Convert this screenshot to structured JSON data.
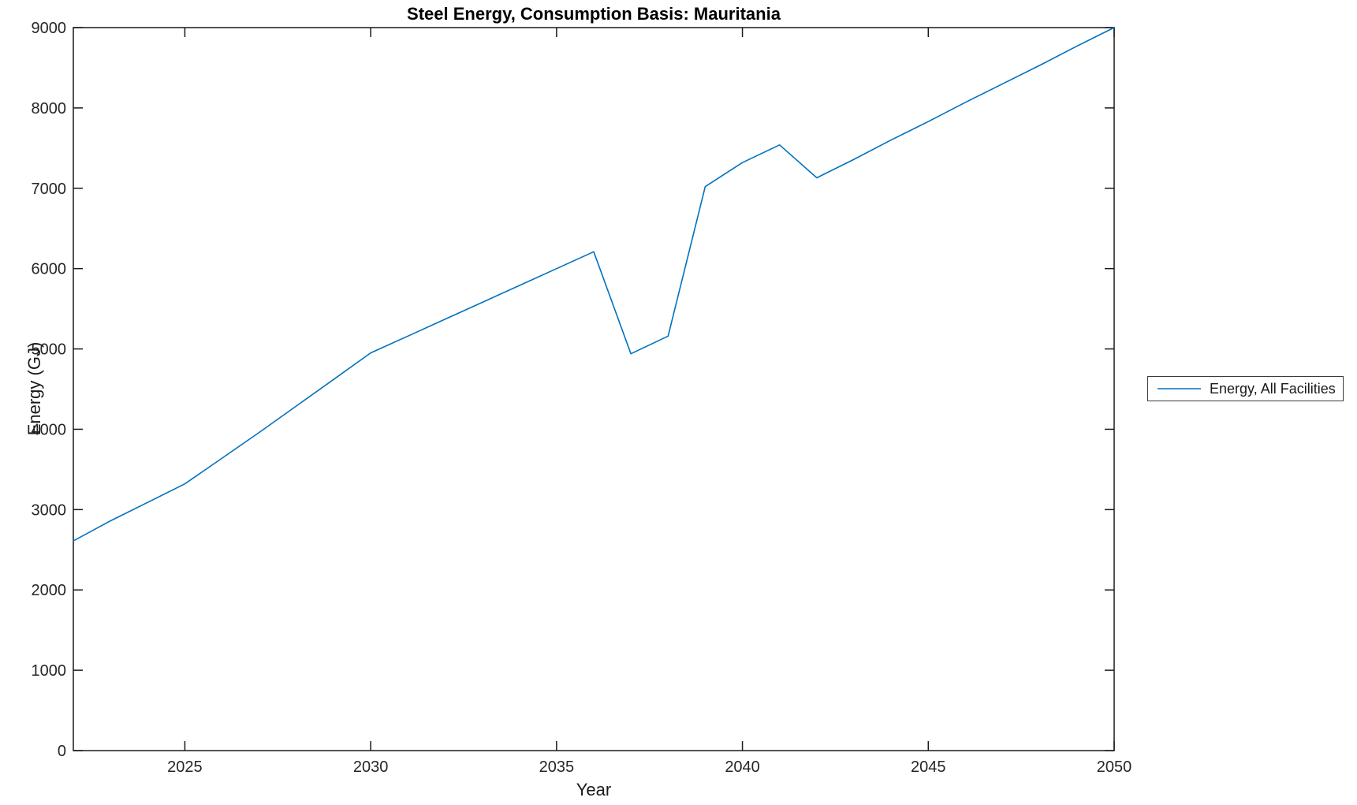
{
  "figure": {
    "title": "Steel Energy, Consumption Basis: Mauritania",
    "xlabel": "Year",
    "ylabel": "Energy (GJ)"
  },
  "legend": {
    "entries": [
      {
        "label": "Energy, All Facilities",
        "color": "#0072BD"
      }
    ]
  },
  "colors": {
    "line": "#0072BD",
    "axis": "#1a1a1a",
    "tick_label": "#262626",
    "background": "#ffffff"
  },
  "chart_data": {
    "type": "line",
    "title": "Steel Energy, Consumption Basis: Mauritania",
    "xlabel": "Year",
    "ylabel": "Energy (GJ)",
    "xlim": [
      2022,
      2050
    ],
    "ylim": [
      0,
      9000
    ],
    "x_ticks": [
      2025,
      2030,
      2035,
      2040,
      2045,
      2050
    ],
    "y_ticks": [
      0,
      1000,
      2000,
      3000,
      4000,
      5000,
      6000,
      7000,
      8000,
      9000
    ],
    "grid": false,
    "legend_position": "outside-right",
    "series": [
      {
        "name": "Energy, All Facilities",
        "color": "#0072BD",
        "x": [
          2022,
          2023,
          2024,
          2025,
          2026,
          2027,
          2028,
          2029,
          2030,
          2031,
          2032,
          2033,
          2034,
          2035,
          2036,
          2037,
          2038,
          2039,
          2040,
          2041,
          2042,
          2043,
          2044,
          2045,
          2046,
          2047,
          2048,
          2049,
          2050
        ],
        "values": [
          2610,
          2860,
          3090,
          3320,
          3640,
          3960,
          4290,
          4620,
          4950,
          5160,
          5370,
          5580,
          5790,
          6000,
          6210,
          4940,
          5160,
          7020,
          7320,
          7540,
          7130,
          7360,
          7600,
          7830,
          8070,
          8300,
          8530,
          8770,
          9000
        ]
      }
    ]
  }
}
